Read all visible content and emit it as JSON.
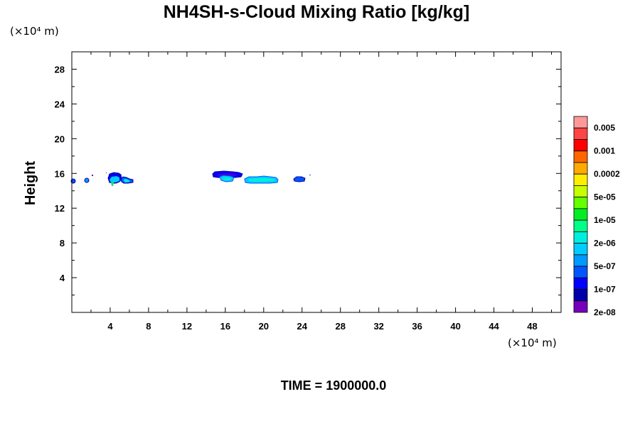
{
  "chart_data": {
    "type": "contour",
    "title": "NH4SH-s-Cloud Mixing Ratio [kg/kg]",
    "ylabel": "Height",
    "x_unit": "(×10⁴ m)",
    "y_unit": "(×10⁴ m)",
    "xlim": [
      0,
      51
    ],
    "ylim": [
      0,
      30
    ],
    "x_ticks": [
      4,
      8,
      12,
      16,
      20,
      24,
      28,
      32,
      36,
      40,
      44,
      48
    ],
    "y_ticks": [
      4,
      8,
      12,
      16,
      20,
      24,
      28
    ],
    "time_label": "TIME = 1900000.0",
    "colorbar": {
      "labels": [
        "0.005",
        "0.001",
        "0.0002",
        "5e-05",
        "1e-05",
        "2e-06",
        "5e-07",
        "1e-07",
        "2e-08"
      ],
      "colors": [
        "#ff9999",
        "#ff4444",
        "#ff0000",
        "#ff6600",
        "#ffaa00",
        "#ffee00",
        "#c8ff00",
        "#66ff00",
        "#00ee22",
        "#00ff88",
        "#00eedd",
        "#00ccff",
        "#0099ff",
        "#0055ff",
        "#0000ff",
        "#0000aa",
        "#7700bb"
      ]
    },
    "cloud_patches": [
      {
        "x": [
          0.0,
          0.3
        ],
        "y": [
          14.8,
          15.2
        ],
        "level": "1e-07"
      },
      {
        "x": [
          1.4,
          1.8
        ],
        "y": [
          14.9,
          15.3
        ],
        "level": "1e-07"
      },
      {
        "x": [
          3.8,
          5.3
        ],
        "y": [
          14.7,
          15.9
        ],
        "level": "5e-07"
      },
      {
        "x": [
          5.2,
          6.3
        ],
        "y": [
          14.8,
          15.3
        ],
        "level": "5e-07"
      },
      {
        "x": [
          14.6,
          17.0
        ],
        "y": [
          15.4,
          15.9
        ],
        "level": "2e-08"
      },
      {
        "x": [
          15.6,
          17.0
        ],
        "y": [
          14.9,
          15.5
        ],
        "level": "5e-07"
      },
      {
        "x": [
          18.4,
          21.4
        ],
        "y": [
          14.8,
          15.4
        ],
        "level": "5e-07"
      },
      {
        "x": [
          23.0,
          24.2
        ],
        "y": [
          14.9,
          15.4
        ],
        "level": "1e-07"
      }
    ]
  }
}
